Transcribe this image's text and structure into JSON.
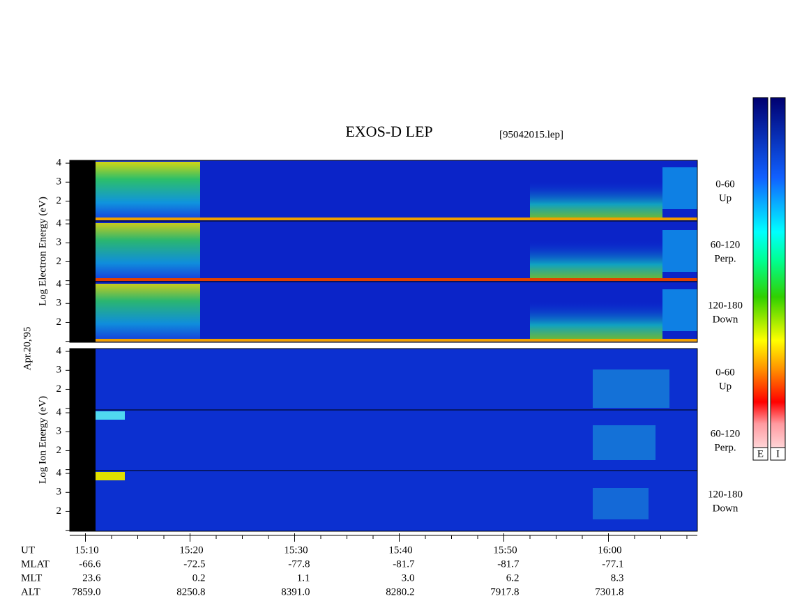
{
  "header": {
    "title": "EXOS-D LEP",
    "file": "[95042015.lep]",
    "date": "Apr.20,'95"
  },
  "panels": [
    {
      "label": "Log Electron Energy (eV)",
      "channels": [
        {
          "range": "0-60",
          "direction": "Up"
        },
        {
          "range": "60-120",
          "direction": "Perp."
        },
        {
          "range": "120-180",
          "direction": "Down"
        }
      ]
    },
    {
      "label": "Log Ion Energy (eV)",
      "channels": [
        {
          "range": "0-60",
          "direction": "Up"
        },
        {
          "range": "60-120",
          "direction": "Perp."
        },
        {
          "range": "120-180",
          "direction": "Down"
        }
      ]
    }
  ],
  "energy_axis": {
    "lim": [
      0.95,
      4.15
    ],
    "ticks": [
      {
        "value": 1,
        "label": null
      },
      2,
      3,
      4
    ]
  },
  "time_axis": {
    "name": "UT",
    "lim": [
      8.5,
      68.5
    ],
    "ticks": [
      {
        "value": 10,
        "label": "15:10"
      },
      {
        "value": 20,
        "label": "15:20"
      },
      {
        "value": 30,
        "label": "15:30"
      },
      {
        "value": 40,
        "label": "15:40"
      },
      {
        "value": 50,
        "label": "15:50"
      },
      {
        "value": 60,
        "label": "16:00"
      }
    ],
    "minor_ticks": [
      12.5,
      15,
      17.5,
      22.5,
      25,
      27.5,
      32.5,
      35,
      37.5,
      42.5,
      45,
      47.5,
      52.5,
      55,
      57.5,
      62.5,
      65,
      67.5
    ]
  },
  "ephemeris": [
    {
      "name": "MLAT",
      "values": [
        "-66.6",
        "-72.5",
        "-77.8",
        "-81.7",
        "-81.7",
        "-77.1"
      ]
    },
    {
      "name": "MLT",
      "values": [
        "23.6",
        "0.2",
        "1.1",
        "3.0",
        "6.2",
        "8.3"
      ]
    },
    {
      "name": "ALT",
      "values": [
        "7859.0",
        "8250.8",
        "8391.0",
        "8280.2",
        "7917.8",
        "7301.8"
      ]
    }
  ],
  "colorbars": [
    "E",
    "I"
  ]
}
